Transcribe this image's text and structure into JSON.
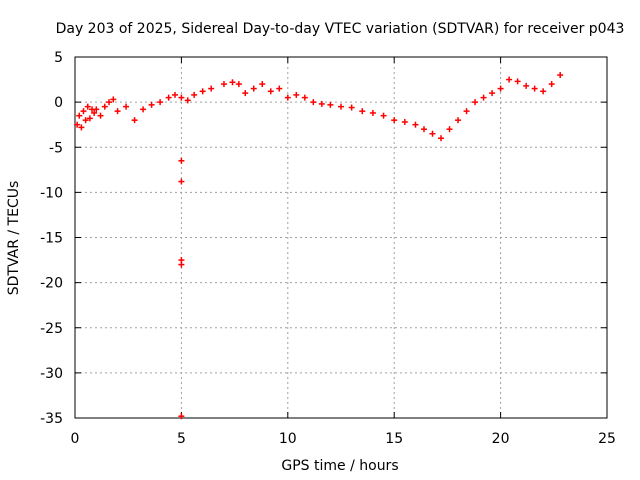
{
  "chart_data": {
    "type": "scatter",
    "title": "Day 203 of 2025, Sidereal Day-to-day VTEC variation (SDTVAR) for receiver p043",
    "xlabel": "GPS time / hours",
    "ylabel": "SDTVAR / TECUs",
    "xlim": [
      0,
      25
    ],
    "ylim": [
      -35,
      5
    ],
    "xticks": [
      0,
      5,
      10,
      15,
      20,
      25
    ],
    "xtick_labels": [
      "0",
      "5",
      "10",
      "15",
      "20",
      "25"
    ],
    "yticks": [
      5,
      0,
      -5,
      -10,
      -15,
      -20,
      -25,
      -30,
      -35
    ],
    "ytick_labels": [
      "5",
      "0",
      "-5",
      "-10",
      "-15",
      "-20",
      "-25",
      "-30",
      "-35"
    ],
    "grid": true,
    "marker": "+",
    "series": [
      {
        "name": "SDTVAR",
        "color": "#ff0000",
        "x": [
          0.1,
          0.2,
          0.3,
          0.4,
          0.5,
          0.6,
          0.7,
          0.8,
          0.9,
          1.0,
          1.2,
          1.4,
          1.6,
          1.8,
          2.0,
          2.4,
          2.8,
          3.2,
          3.6,
          4.0,
          4.4,
          4.7,
          5.0,
          5.3,
          5.6,
          6.0,
          6.4,
          7.0,
          7.4,
          7.7,
          8.0,
          8.4,
          8.8,
          9.2,
          9.6,
          10.0,
          10.4,
          10.8,
          11.2,
          11.6,
          12.0,
          12.5,
          13.0,
          13.5,
          14.0,
          14.5,
          15.0,
          15.5,
          16.0,
          16.4,
          16.8,
          17.2,
          17.6,
          18.0,
          18.4,
          18.8,
          19.2,
          19.6,
          20.0,
          20.4,
          20.8,
          21.2,
          21.6,
          22.0,
          22.4,
          22.8,
          5.0,
          5.0,
          5.0,
          5.0,
          5.0
        ],
        "y": [
          -2.5,
          -1.5,
          -2.8,
          -1.0,
          -2.0,
          -0.5,
          -1.8,
          -0.8,
          -1.2,
          -0.8,
          -1.5,
          -0.5,
          0.0,
          0.3,
          -1.0,
          -0.5,
          -2.0,
          -0.8,
          -0.3,
          0.0,
          0.5,
          0.8,
          0.5,
          0.2,
          0.8,
          1.2,
          1.5,
          2.0,
          2.2,
          2.0,
          1.0,
          1.5,
          2.0,
          1.2,
          1.5,
          0.5,
          0.8,
          0.5,
          0.0,
          -0.2,
          -0.3,
          -0.5,
          -0.6,
          -1.0,
          -1.2,
          -1.5,
          -2.0,
          -2.2,
          -2.5,
          -3.0,
          -3.5,
          -4.0,
          -3.0,
          -2.0,
          -1.0,
          0.0,
          0.5,
          1.0,
          1.5,
          2.5,
          2.3,
          1.8,
          1.5,
          1.2,
          2.0,
          3.0,
          -6.5,
          -8.8,
          -17.5,
          -18.0,
          -34.8
        ]
      }
    ]
  }
}
